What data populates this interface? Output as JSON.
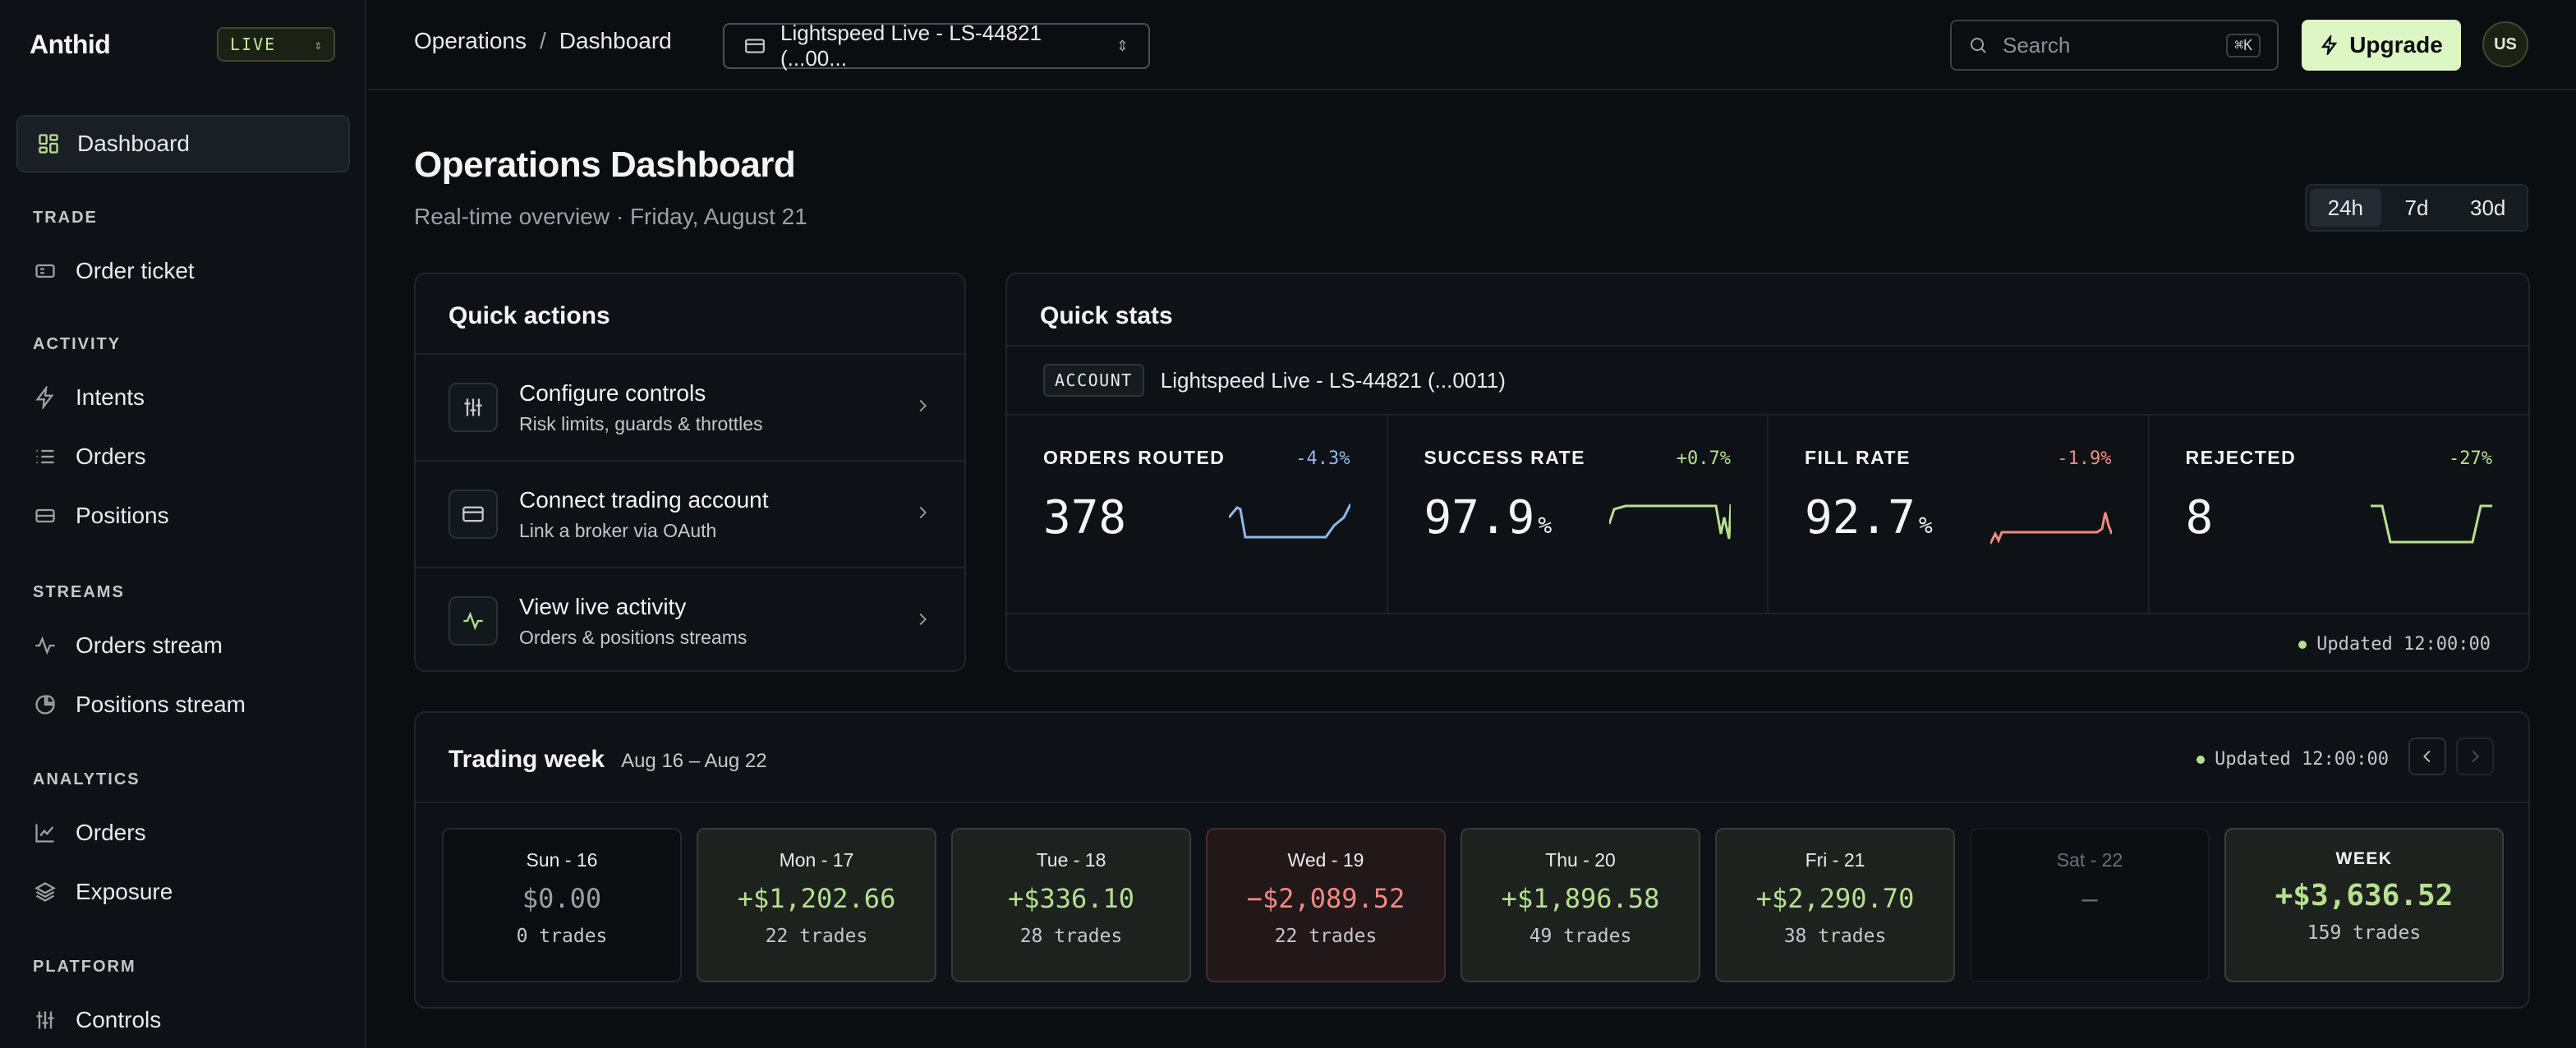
{
  "app": {
    "brand": "Anthid",
    "env": "LIVE"
  },
  "sidebar": {
    "active": {
      "label": "Dashboard",
      "icon": "dashboard-grid-icon"
    },
    "sections": [
      {
        "title": "TRADE",
        "items": [
          {
            "label": "Order ticket",
            "icon": "ticket-icon"
          }
        ]
      },
      {
        "title": "ACTIVITY",
        "items": [
          {
            "label": "Intents",
            "icon": "lightning-icon"
          },
          {
            "label": "Orders",
            "icon": "list-icon"
          },
          {
            "label": "Positions",
            "icon": "positions-icon"
          }
        ]
      },
      {
        "title": "STREAMS",
        "items": [
          {
            "label": "Orders stream",
            "icon": "pulse-icon"
          },
          {
            "label": "Positions stream",
            "icon": "pie-icon"
          }
        ]
      },
      {
        "title": "ANALYTICS",
        "items": [
          {
            "label": "Orders",
            "icon": "chart-line-icon"
          },
          {
            "label": "Exposure",
            "icon": "layers-icon"
          }
        ]
      },
      {
        "title": "PLATFORM",
        "items": [
          {
            "label": "Controls",
            "icon": "sliders-icon"
          }
        ]
      }
    ]
  },
  "topbar": {
    "breadcrumb": [
      "Operations",
      "/",
      "Dashboard"
    ],
    "account_label": "Lightspeed Live - LS-44821 (...00...",
    "search_placeholder": "Search",
    "search_shortcut": "⌘K",
    "upgrade_label": "Upgrade",
    "avatar_initials": "US"
  },
  "header": {
    "title": "Operations Dashboard",
    "subtitle": "Real-time overview · Friday, August 21",
    "ranges": [
      "24h",
      "7d",
      "30d"
    ],
    "active_range": "24h"
  },
  "quick_actions": {
    "title": "Quick actions",
    "items": [
      {
        "title": "Configure controls",
        "subtitle": "Risk limits, guards & throttles",
        "icon": "sliders-icon"
      },
      {
        "title": "Connect trading account",
        "subtitle": "Link a broker via OAuth",
        "icon": "card-icon"
      },
      {
        "title": "View live activity",
        "subtitle": "Orders & positions streams",
        "icon": "pulse-icon"
      }
    ]
  },
  "quick_stats": {
    "title": "Quick stats",
    "account_tag": "ACCOUNT",
    "account_name": "Lightspeed Live - LS-44821 (...0011)",
    "stats": [
      {
        "label": "ORDERS ROUTED",
        "delta": "-4.3%",
        "value": "378",
        "unit": "",
        "color": "#8fb8ec"
      },
      {
        "label": "SUCCESS RATE",
        "delta": "+0.7%",
        "value": "97.9",
        "unit": "%",
        "color": "#b6e08f"
      },
      {
        "label": "FILL RATE",
        "delta": "-1.9%",
        "value": "92.7",
        "unit": "%",
        "color": "#f08a82"
      },
      {
        "label": "REJECTED",
        "delta": "-27%",
        "value": "8",
        "unit": "",
        "color": "#b6e08f"
      }
    ],
    "updated": "Updated 12:00:00"
  },
  "trading_week": {
    "title": "Trading week",
    "range": "Aug 16 – Aug 22",
    "updated": "Updated 12:00:00",
    "days": [
      {
        "name": "Sun - 16",
        "amount": "$0.00",
        "trades": "0 trades",
        "state": "neutral"
      },
      {
        "name": "Mon - 17",
        "amount": "+$1,202.66",
        "trades": "22 trades",
        "state": "pos"
      },
      {
        "name": "Tue - 18",
        "amount": "+$336.10",
        "trades": "28 trades",
        "state": "pos"
      },
      {
        "name": "Wed - 19",
        "amount": "−$2,089.52",
        "trades": "22 trades",
        "state": "neg"
      },
      {
        "name": "Thu - 20",
        "amount": "+$1,896.58",
        "trades": "49 trades",
        "state": "pos"
      },
      {
        "name": "Fri - 21",
        "amount": "+$2,290.70",
        "trades": "38 trades",
        "state": "pos"
      },
      {
        "name": "Sat - 22",
        "amount": "—",
        "trades": "",
        "state": "empty"
      }
    ],
    "week": {
      "label": "WEEK",
      "amount": "+$3,636.52",
      "trades": "159 trades"
    }
  }
}
